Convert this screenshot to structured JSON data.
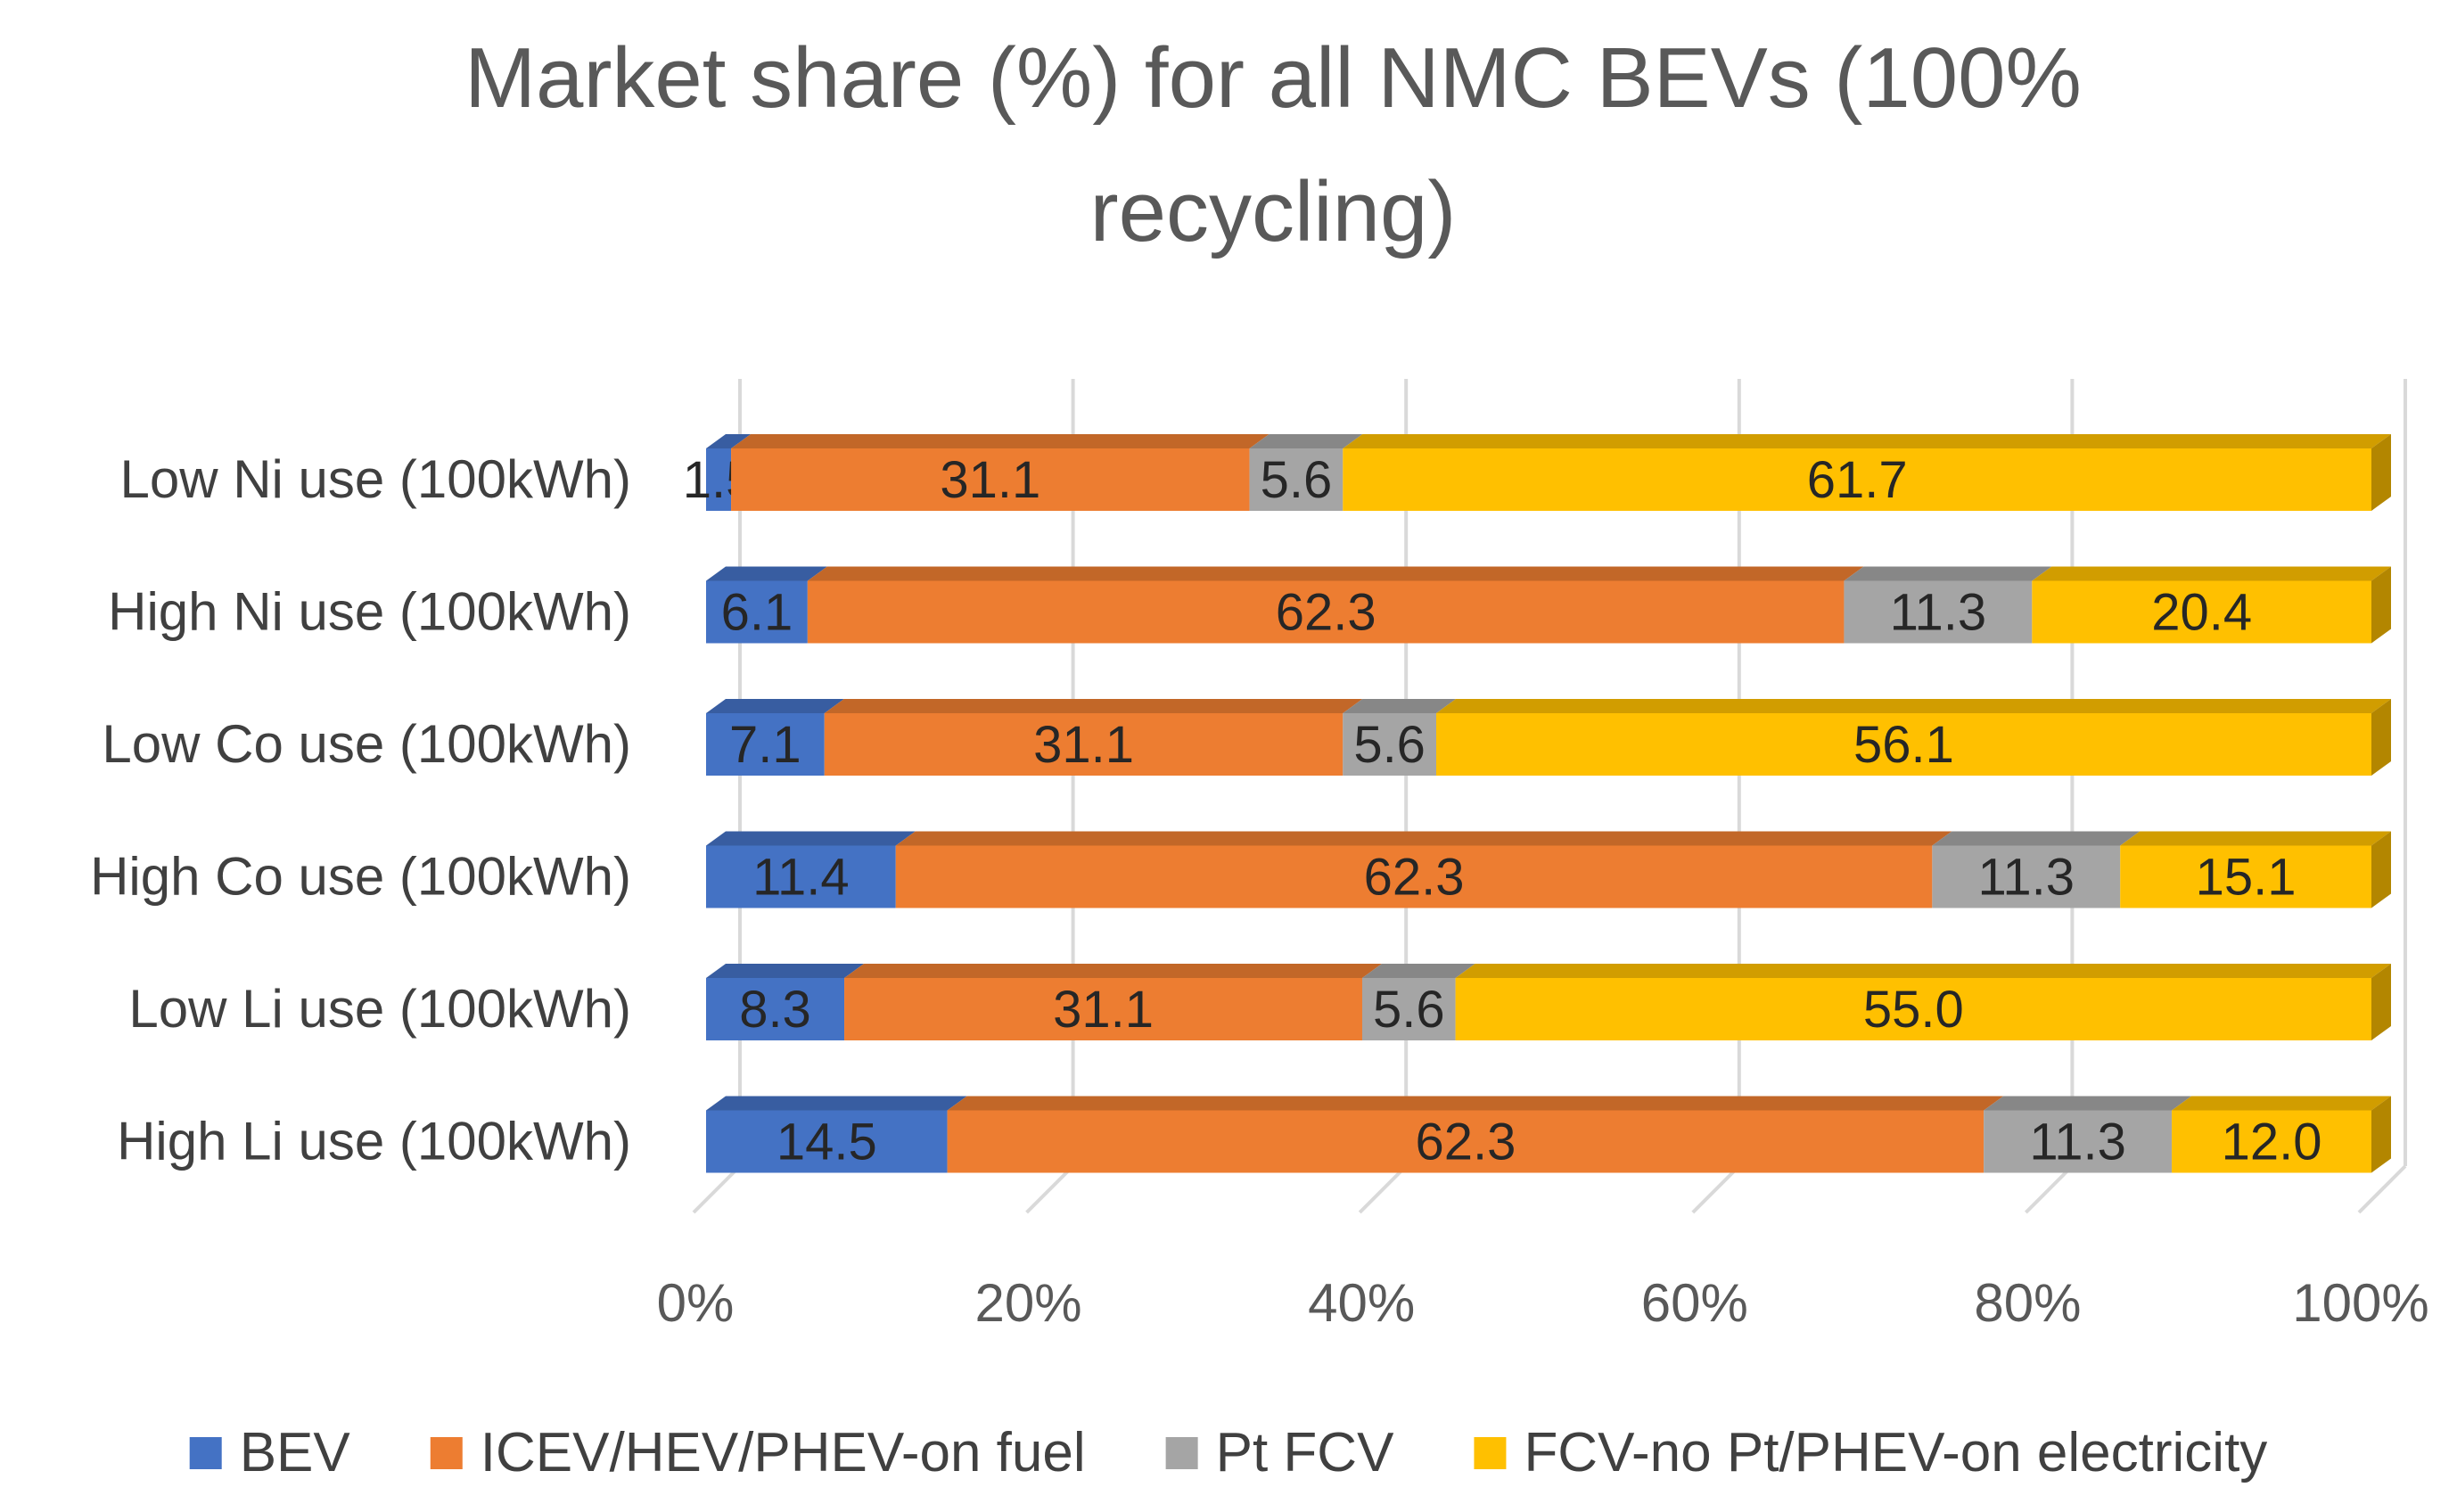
{
  "chart_data": {
    "type": "bar",
    "orientation": "horizontal",
    "stacked": "percent",
    "title": "Market share (%) for all NMC BEVs (100% recycling)",
    "title_lines": [
      "Market share (%) for all NMC BEVs (100%",
      "recycling)"
    ],
    "categories": [
      "Low Ni use (100kWh)",
      "High Ni use (100kWh)",
      "Low Co use (100kWh)",
      "High Co use (100kWh)",
      "Low Li use (100kWh)",
      "High Li use (100kWh)"
    ],
    "series": [
      {
        "name": "BEV",
        "color": "#4472C4",
        "values": [
          1.5,
          6.1,
          7.1,
          11.4,
          8.3,
          14.5
        ]
      },
      {
        "name": "ICEV/HEV/PHEV-on fuel",
        "color": "#ED7D31",
        "values": [
          31.1,
          62.3,
          31.1,
          62.3,
          31.1,
          62.3
        ]
      },
      {
        "name": "Pt FCV",
        "color": "#A5A5A5",
        "values": [
          5.6,
          11.3,
          5.6,
          11.3,
          5.6,
          11.3
        ]
      },
      {
        "name": "FCV-no Pt/PHEV-on electricity",
        "color": "#FFC000",
        "values": [
          61.7,
          20.4,
          56.1,
          15.1,
          55.0,
          12.0
        ]
      }
    ],
    "x_ticks": [
      "0%",
      "20%",
      "40%",
      "60%",
      "80%",
      "100%"
    ],
    "xlim": [
      0,
      100
    ],
    "grid": true,
    "legend": "bottom"
  }
}
